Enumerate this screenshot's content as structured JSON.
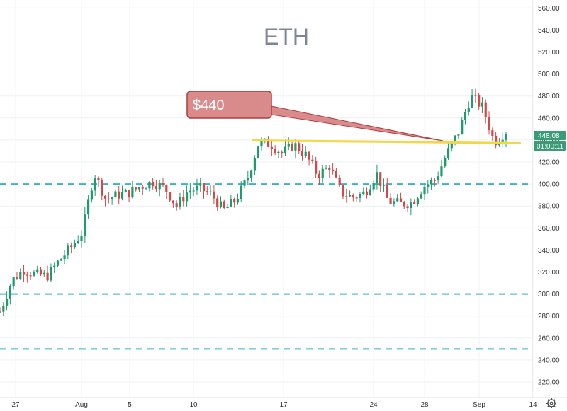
{
  "chart_data": {
    "type": "candlestick",
    "title": "ETH",
    "ylim": [
      215,
      570
    ],
    "y_ticks": [
      220,
      240,
      260,
      280,
      300,
      320,
      340,
      360,
      380,
      400,
      420,
      440,
      460,
      480,
      500,
      520,
      540,
      560
    ],
    "y_tick_labels": [
      "220.00",
      "240.00",
      "260.00",
      "280.00",
      "300.00",
      "320.00",
      "340.00",
      "360.00",
      "380.00",
      "400.00",
      "420.00",
      "440.00",
      "460.00",
      "480.00",
      "500.00",
      "520.00",
      "540.00",
      "560.00"
    ],
    "x_tick_labels": [
      "27",
      "Aug",
      "5",
      "10",
      "17",
      "24",
      "28",
      "Sep",
      "14"
    ],
    "price_series": [
      {
        "date": "Jul 25",
        "value": 284
      },
      {
        "date": "Jul 26",
        "value": 312
      },
      {
        "date": "Jul 27",
        "value": 322
      },
      {
        "date": "Jul 28",
        "value": 318
      },
      {
        "date": "Jul 29",
        "value": 316
      },
      {
        "date": "Jul 30",
        "value": 330
      },
      {
        "date": "Jul 31",
        "value": 342
      },
      {
        "date": "Aug 1",
        "value": 356
      },
      {
        "date": "Aug 2",
        "value": 410
      },
      {
        "date": "Aug 3",
        "value": 386
      },
      {
        "date": "Aug 4",
        "value": 390
      },
      {
        "date": "Aug 5",
        "value": 392
      },
      {
        "date": "Aug 6",
        "value": 398
      },
      {
        "date": "Aug 7",
        "value": 402
      },
      {
        "date": "Aug 8",
        "value": 396
      },
      {
        "date": "Aug 9",
        "value": 380
      },
      {
        "date": "Aug 10",
        "value": 394
      },
      {
        "date": "Aug 11",
        "value": 396
      },
      {
        "date": "Aug 12",
        "value": 390
      },
      {
        "date": "Aug 13",
        "value": 376
      },
      {
        "date": "Aug 14",
        "value": 385
      },
      {
        "date": "Aug 15",
        "value": 404
      },
      {
        "date": "Aug 16",
        "value": 438
      },
      {
        "date": "Aug 17",
        "value": 436
      },
      {
        "date": "Aug 18",
        "value": 428
      },
      {
        "date": "Aug 19",
        "value": 436
      },
      {
        "date": "Aug 20",
        "value": 426
      },
      {
        "date": "Aug 21",
        "value": 408
      },
      {
        "date": "Aug 22",
        "value": 416
      },
      {
        "date": "Aug 23",
        "value": 392
      },
      {
        "date": "Aug 24",
        "value": 388
      },
      {
        "date": "Aug 25",
        "value": 392
      },
      {
        "date": "Aug 26",
        "value": 410
      },
      {
        "date": "Aug 27",
        "value": 384
      },
      {
        "date": "Aug 28",
        "value": 382
      },
      {
        "date": "Aug 29",
        "value": 383
      },
      {
        "date": "Aug 30",
        "value": 398
      },
      {
        "date": "Aug 31",
        "value": 404
      },
      {
        "date": "Sep 1",
        "value": 428
      },
      {
        "date": "Sep 2",
        "value": 448
      },
      {
        "date": "Sep 3",
        "value": 480
      },
      {
        "date": "Sep 4",
        "value": 470
      },
      {
        "date": "Sep 5",
        "value": 438
      },
      {
        "date": "Sep 6",
        "value": 448
      }
    ],
    "reference_lines": [
      {
        "type": "dashed",
        "value": 400,
        "color": "#3bb3c3"
      },
      {
        "type": "dashed",
        "value": 300,
        "color": "#3bb3c3"
      },
      {
        "type": "dashed",
        "value": 250,
        "color": "#3bb3c3"
      },
      {
        "type": "solid",
        "value": 439,
        "color": "#f2d843"
      }
    ],
    "up_color": "#1f9c6c",
    "down_color": "#d04a4a",
    "annotation": {
      "text": "$440",
      "fill": "#d98b8b",
      "border": "#b13b3b"
    },
    "price_tag": {
      "price": "448.08",
      "countdown": "01:00:11",
      "color": "#3a9c76"
    },
    "settings_icon": "gear-icon"
  }
}
